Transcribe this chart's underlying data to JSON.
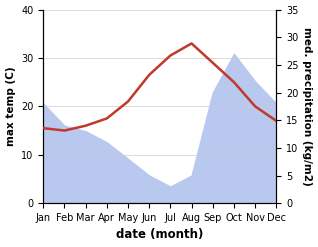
{
  "months": [
    "Jan",
    "Feb",
    "Mar",
    "Apr",
    "May",
    "Jun",
    "Jul",
    "Aug",
    "Sep",
    "Oct",
    "Nov",
    "Dec"
  ],
  "max_temp": [
    15.5,
    15.0,
    16.0,
    17.5,
    21.0,
    26.5,
    30.5,
    33.0,
    29.0,
    25.0,
    20.0,
    17.0
  ],
  "precipitation": [
    18.0,
    14.0,
    13.0,
    11.0,
    8.0,
    5.0,
    3.0,
    5.0,
    20.0,
    27.0,
    22.0,
    18.0
  ],
  "temp_color": "#c0392b",
  "precip_fill_color": "#b8c8ee",
  "temp_ylim": [
    0,
    40
  ],
  "precip_ylim": [
    0,
    35
  ],
  "temp_yticks": [
    0,
    10,
    20,
    30,
    40
  ],
  "precip_yticks": [
    0,
    5,
    10,
    15,
    20,
    25,
    30,
    35
  ],
  "ylabel_left": "max temp (C)",
  "ylabel_right": "med. precipitation (kg/m2)",
  "xlabel": "date (month)",
  "background_color": "#ffffff",
  "temp_linewidth": 1.8,
  "font_size_ticks": 7,
  "font_size_ylabel": 7.5,
  "font_size_xlabel": 8.5
}
